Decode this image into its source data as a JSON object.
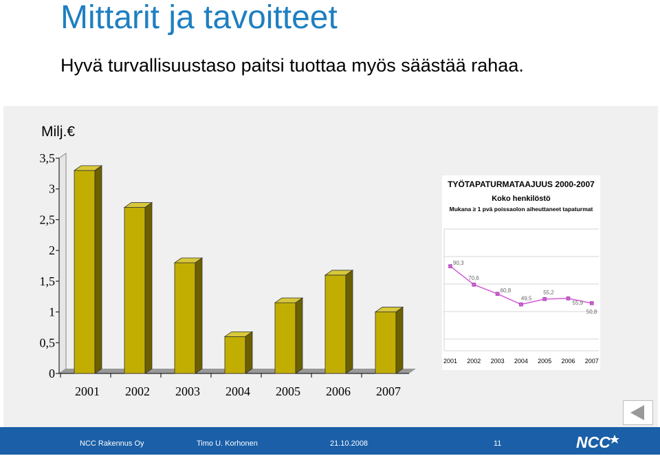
{
  "slide": {
    "title": "Mittarit ja tavoitteet",
    "subtitle": "Hyvä turvallisuustaso paitsi tuottaa myös säästää rahaa."
  },
  "chart_data": [
    {
      "type": "bar",
      "title": "",
      "ylabel": "Milj.€",
      "categories": [
        "2001",
        "2002",
        "2003",
        "2004",
        "2005",
        "2006",
        "2007"
      ],
      "values": [
        3.3,
        2.7,
        1.8,
        0.6,
        1.15,
        1.6,
        1.0
      ],
      "ylim": [
        0,
        3.5
      ],
      "yticks": [
        "0",
        "0,5",
        "1",
        "1,5",
        "2",
        "2,5",
        "3",
        "3,5"
      ],
      "color": "#c2ae00"
    },
    {
      "type": "line",
      "title": "TYÖTAPATURMATAAJUUS 2000-2007",
      "subtitle": "Koko henkilöstö",
      "note": "Mukana ≥ 1 pvä poissaolon aiheuttaneet tapaturmat",
      "x": [
        "2001",
        "2002",
        "2003",
        "2004",
        "2005",
        "2006",
        "2007"
      ],
      "points": [
        {
          "label": "90,3",
          "value": 90.3
        },
        {
          "label": "70,6",
          "value": 70.6
        },
        {
          "label": "60,8",
          "value": 60.8
        },
        {
          "label": "49,5",
          "value": 49.5
        },
        {
          "label": "55,2",
          "value": 55.2
        },
        {
          "label": "55,9",
          "value": 55.9
        },
        {
          "label": "50,8",
          "value": 50.8
        }
      ],
      "color": "#d45ad8"
    }
  ],
  "footer": {
    "company": "NCC Rakennus Oy",
    "author": "Timo U. Korhonen",
    "date": "21.10.2008",
    "page": "11",
    "logo_text": "NCC"
  }
}
